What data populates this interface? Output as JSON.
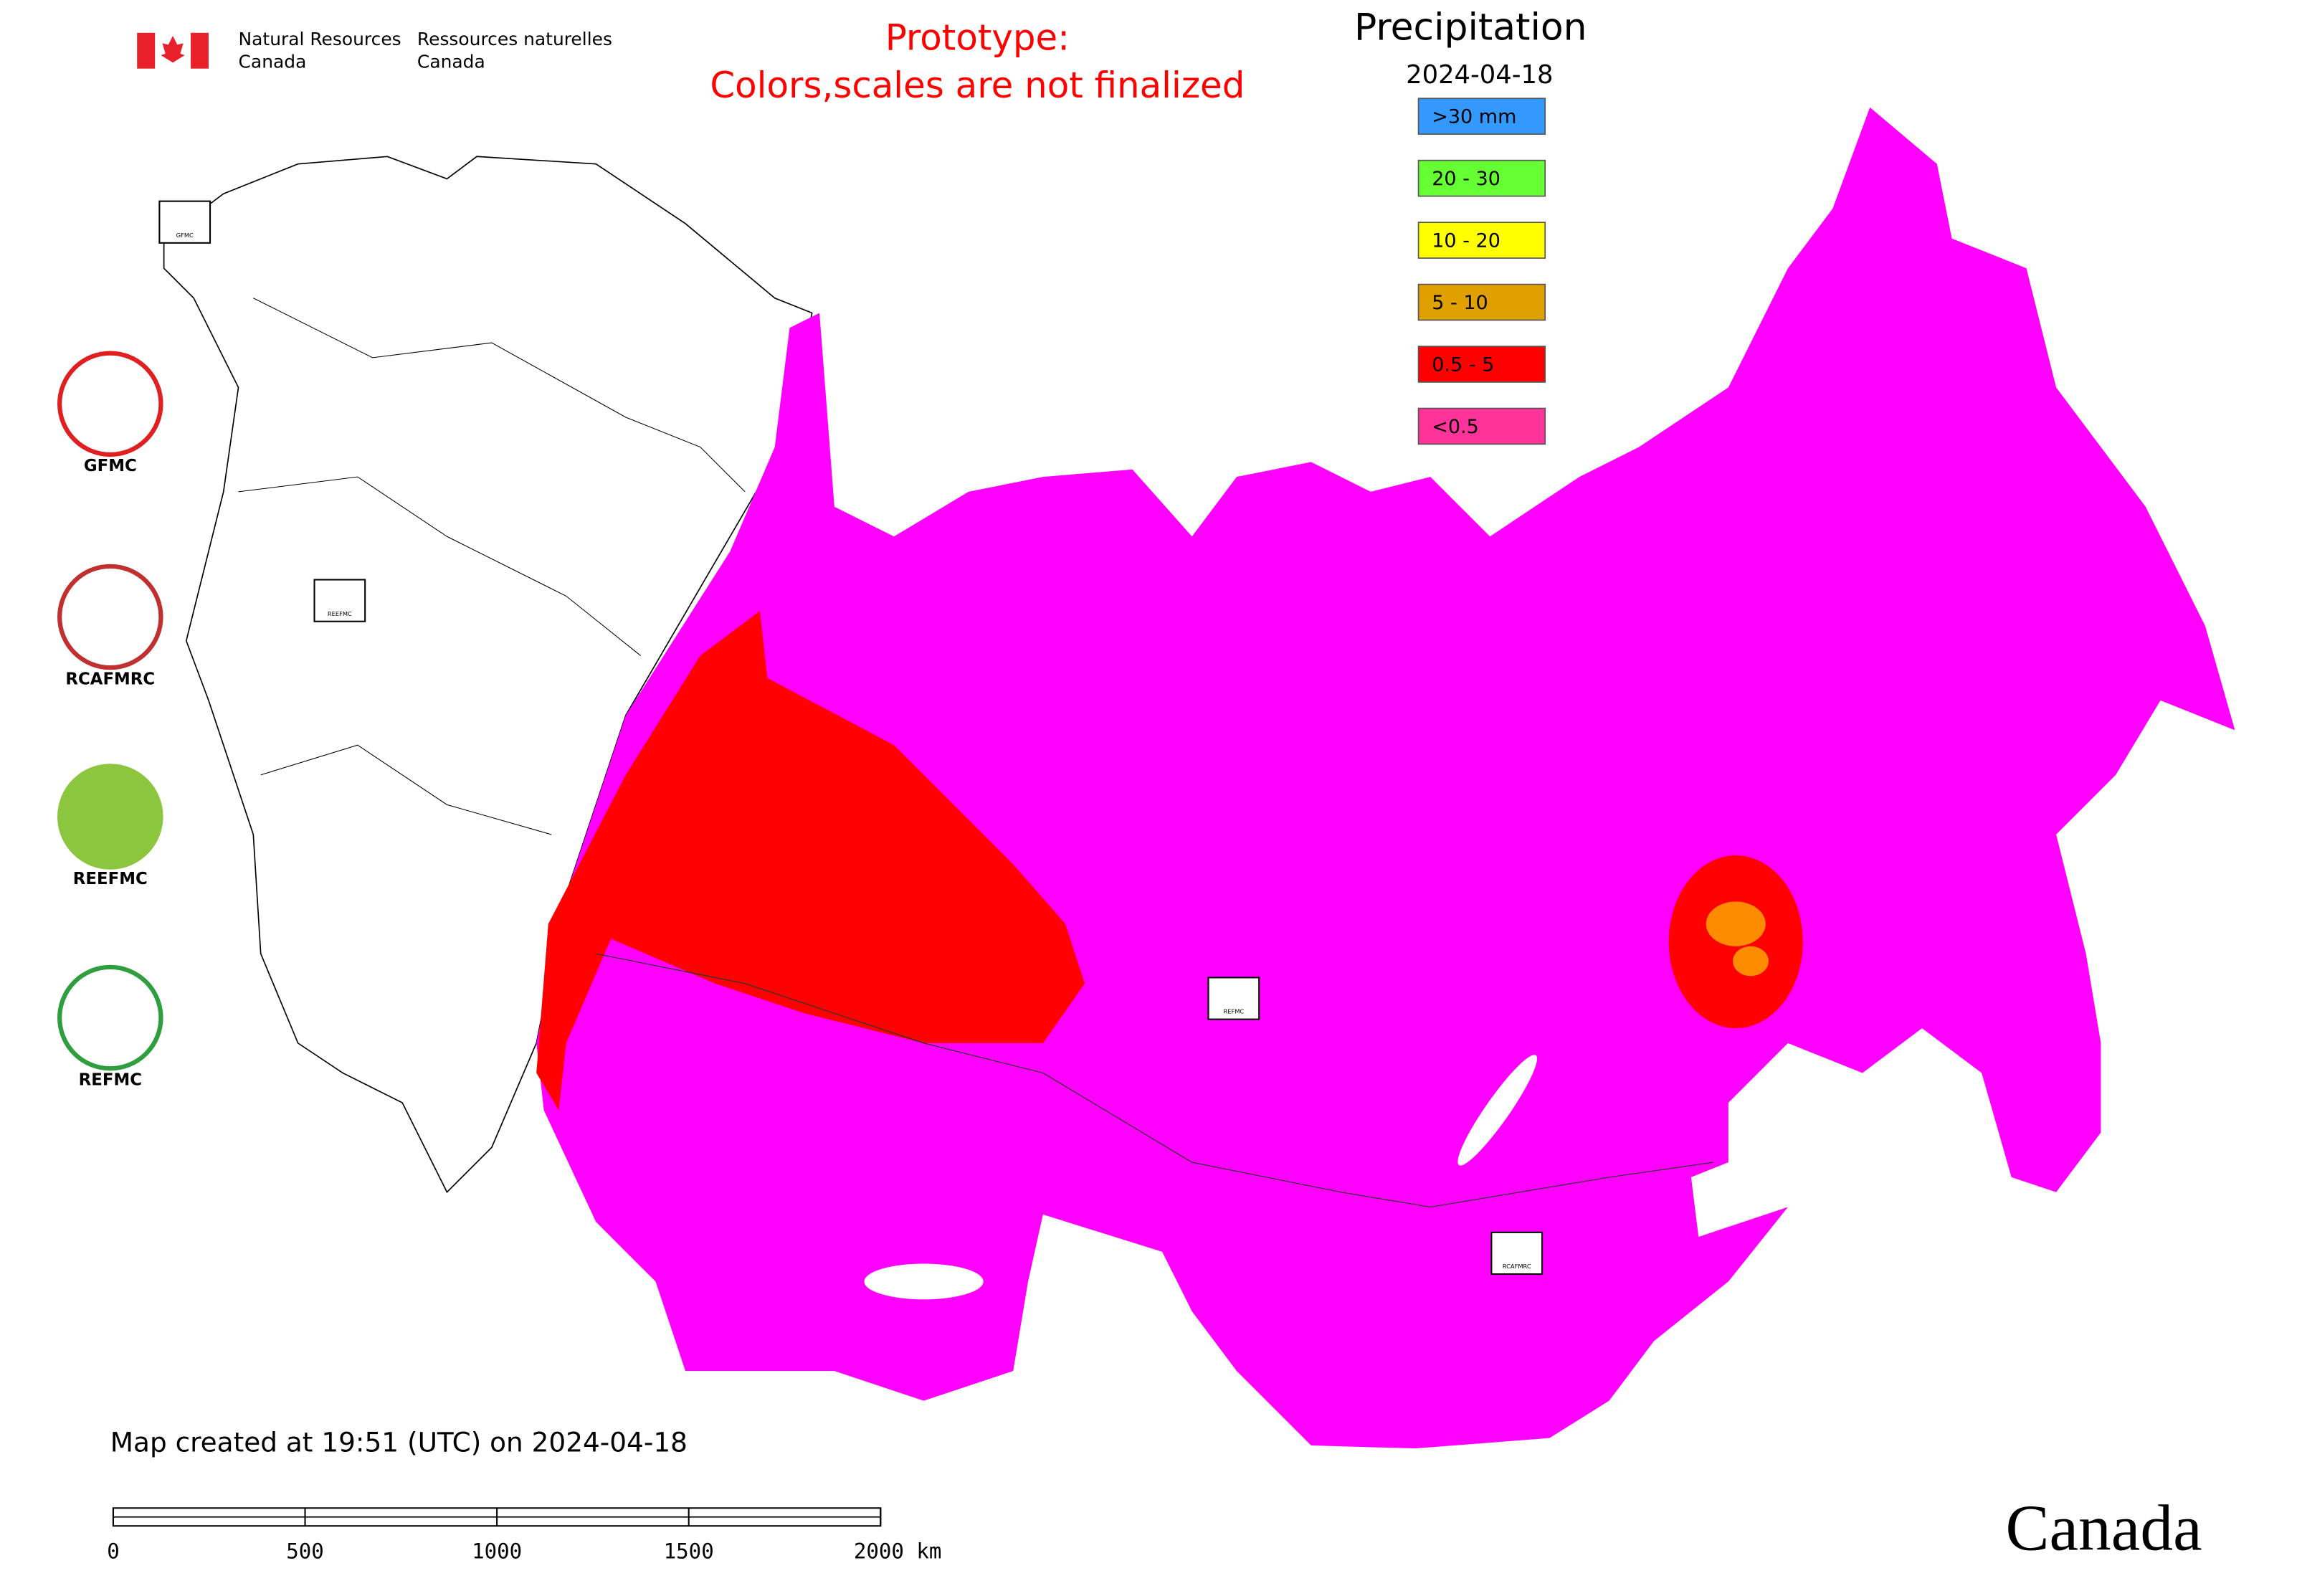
{
  "header": {
    "agency_en_1": "Natural Resources",
    "agency_en_2": "Canada",
    "agency_fr_1": "Ressources naturelles",
    "agency_fr_2": "Canada",
    "notice_1": "Prototype:",
    "notice_2": "Colors,scales are not finalized"
  },
  "legend": {
    "title": "Precipitation",
    "date": "2024-04-18",
    "items": [
      {
        "label": ">30 mm",
        "color": "#3399ff"
      },
      {
        "label": "20 - 30",
        "color": "#66ff33"
      },
      {
        "label": "10 - 20",
        "color": "#ffff00"
      },
      {
        "label": "5 - 10",
        "color": "#e0a000"
      },
      {
        "label": "0.5 - 5",
        "color": "#ff0000"
      },
      {
        "label": "<0.5",
        "color": "#ff3399"
      }
    ]
  },
  "logos": [
    "GFMC",
    "RCAFMRC",
    "REEFMC",
    "REFMC"
  ],
  "map_markers": [
    "GFMC",
    "REEFMC",
    "REFMC",
    "RCAFMRC"
  ],
  "footer": {
    "created": "Map created at 19:51 (UTC) on 2024-04-18",
    "wordmark": "Canada"
  },
  "scale_bar": {
    "range": [
      0,
      2000
    ],
    "ticks": [
      0,
      500,
      1000,
      1500,
      {
        "value": 2000,
        "label": "2000 km"
      }
    ]
  }
}
